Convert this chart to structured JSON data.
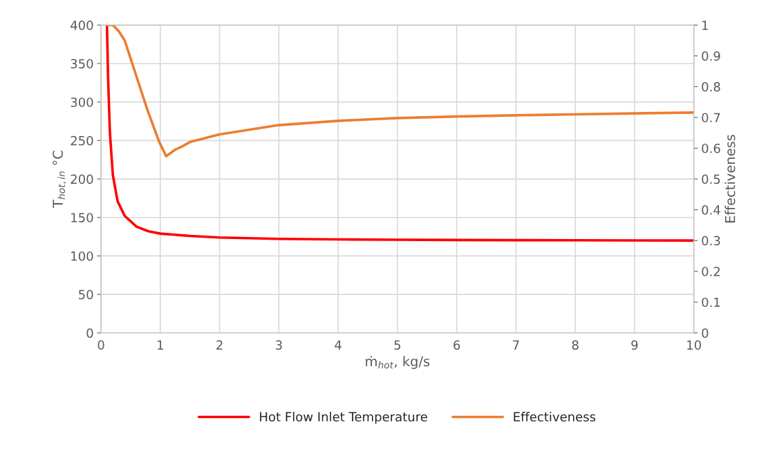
{
  "chart_data": {
    "type": "line",
    "xlabel": "ṁ$_{hot}$, kg/s",
    "ylabel": "T$_{hot,in}$ °C",
    "y2label": "Effectiveness",
    "xlim": [
      0,
      10
    ],
    "xticks": [
      0,
      1,
      2,
      3,
      4,
      5,
      6,
      7,
      8,
      9,
      10
    ],
    "ylim": [
      0,
      400
    ],
    "yticks": [
      0,
      50,
      100,
      150,
      200,
      250,
      300,
      350,
      400
    ],
    "y2lim": [
      0,
      1
    ],
    "y2ticks": [
      0,
      0.1,
      0.2,
      0.3,
      0.4,
      0.5,
      0.6,
      0.7,
      0.8,
      0.9,
      1
    ],
    "grid": true,
    "legend": "bottom",
    "marker": "none",
    "line_style": "solid",
    "series": [
      {
        "name": "Hot Flow Inlet Temperature",
        "color": "#ff0000",
        "x": [
          0.1,
          0.12,
          0.15,
          0.2,
          0.28,
          0.4,
          0.6,
          0.8,
          1.0,
          1.5,
          2,
          3,
          4,
          5,
          6,
          7,
          8,
          9,
          10
        ],
        "values": [
          400,
          330,
          260,
          205,
          171,
          152,
          138,
          132,
          129,
          126,
          124,
          122.2,
          121.5,
          121,
          120.7,
          120.5,
          120.3,
          120.1,
          120
        ]
      },
      {
        "name": "Effectiveness",
        "color": "#ed7d31",
        "axis": "y2",
        "x": [
          0.1,
          0.2,
          0.3,
          0.4,
          0.59,
          0.78,
          0.98,
          1.1,
          1.25,
          1.37,
          1.5,
          2,
          3,
          4,
          5,
          6,
          7,
          8,
          9,
          10
        ],
        "values": [
          1.0,
          1.0,
          0.98,
          0.95,
          0.838,
          0.726,
          0.621,
          0.574,
          0.595,
          0.606,
          0.62,
          0.645,
          0.675,
          0.689,
          0.698,
          0.703,
          0.707,
          0.71,
          0.713,
          0.716
        ]
      }
    ]
  }
}
